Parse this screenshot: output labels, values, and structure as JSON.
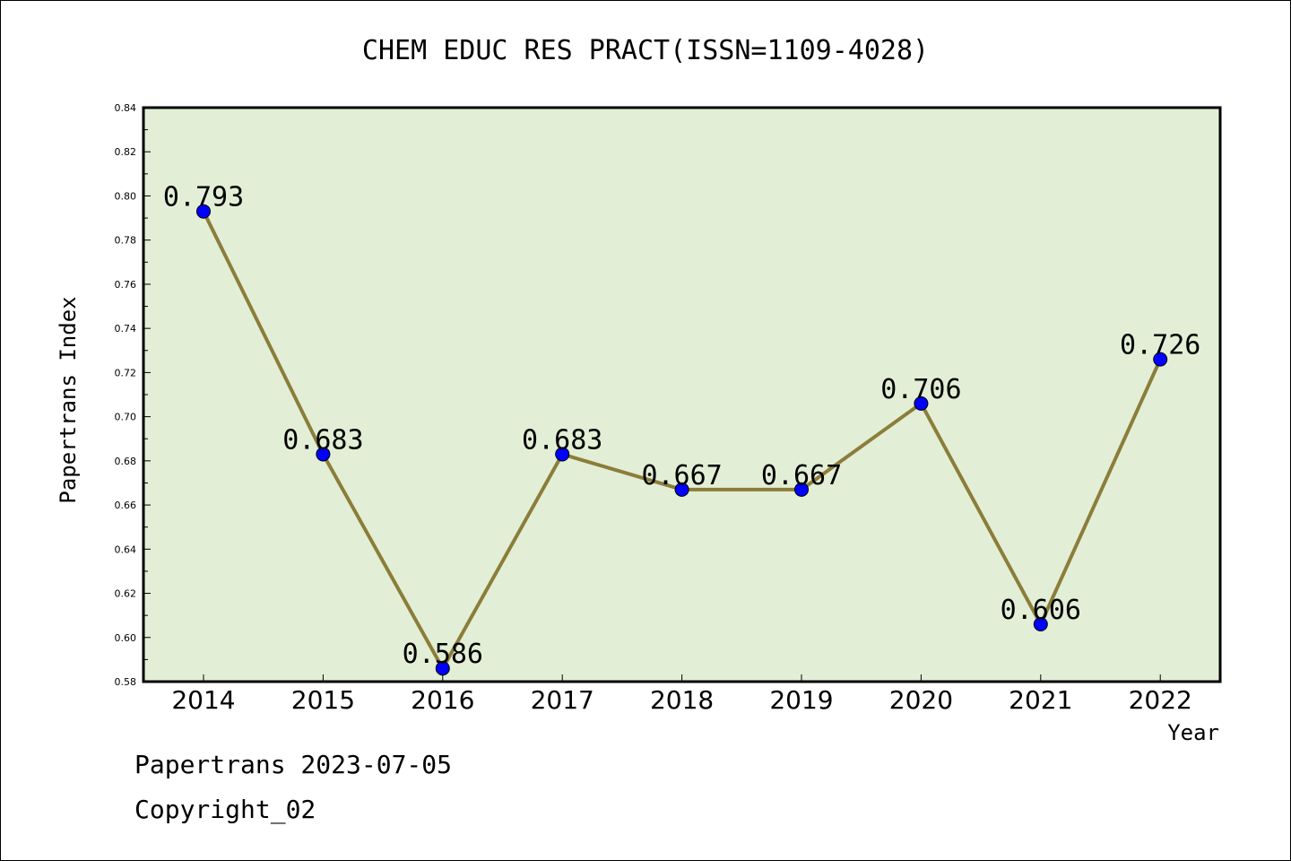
{
  "chart_data": {
    "type": "line",
    "title": "CHEM EDUC RES PRACT(ISSN=1109-4028)",
    "xlabel": "Year",
    "ylabel": "Papertrans Index",
    "categories": [
      "2014",
      "2015",
      "2016",
      "2017",
      "2018",
      "2019",
      "2020",
      "2021",
      "2022"
    ],
    "values": [
      0.793,
      0.683,
      0.586,
      0.683,
      0.667,
      0.667,
      0.706,
      0.606,
      0.726
    ],
    "data_labels": [
      "0.793",
      "0.683",
      "0.586",
      "0.683",
      "0.667",
      "0.667",
      "0.706",
      "0.606",
      "0.726"
    ],
    "ylim": [
      0.58,
      0.84
    ],
    "yticks": [
      "0.58",
      "0.60",
      "0.62",
      "0.64",
      "0.66",
      "0.68",
      "0.70",
      "0.72",
      "0.74",
      "0.76",
      "0.78",
      "0.80",
      "0.82",
      "0.84"
    ],
    "grid": false,
    "colors": {
      "plot_background": "#e2efd6",
      "line": "#8b7d3a",
      "marker": "#0000ff"
    }
  },
  "footer": {
    "line1": "Papertrans 2023-07-05",
    "line2": "Copyright_02"
  }
}
